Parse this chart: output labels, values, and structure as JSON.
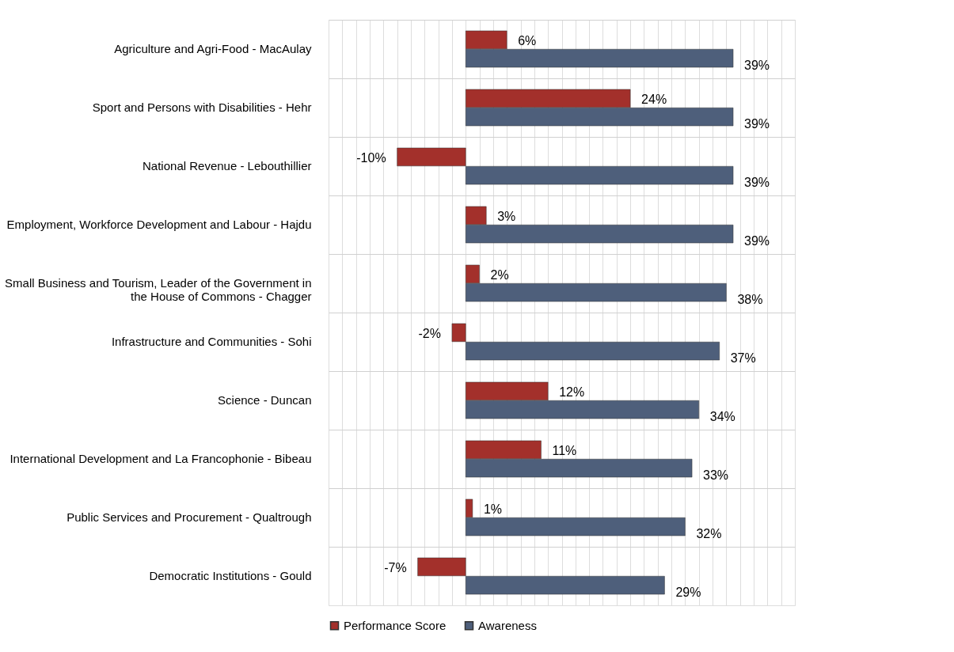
{
  "chart_data": {
    "type": "bar",
    "orientation": "horizontal",
    "categories": [
      "Agriculture and Agri-Food - MacAulay",
      "Sport and Persons with Disabilities - Hehr",
      "National Revenue - Lebouthillier",
      "Employment, Workforce Development and Labour - Hajdu",
      "Small Business and Tourism, Leader of the Government in the House of Commons - Chagger",
      "Infrastructure and Communities - Sohi",
      "Science - Duncan",
      "International Development and La Francophonie - Bibeau",
      "Public Services and Procurement - Qualtrough",
      "Democratic Institutions - Gould"
    ],
    "series": [
      {
        "name": "Performance Score",
        "color": "#a3302b",
        "values": [
          6,
          24,
          -10,
          3,
          2,
          -2,
          12,
          11,
          1,
          -7
        ],
        "value_labels": [
          "6%",
          "24%",
          "-10%",
          "3%",
          "2%",
          "-2%",
          "12%",
          "11%",
          "1%",
          "-7%"
        ]
      },
      {
        "name": "Awareness",
        "color": "#4e5f7b",
        "values": [
          39,
          39,
          39,
          39,
          38,
          37,
          34,
          33,
          32,
          29
        ],
        "value_labels": [
          "39%",
          "39%",
          "39%",
          "39%",
          "38%",
          "37%",
          "34%",
          "33%",
          "32%",
          "29%"
        ]
      }
    ],
    "xlim": [
      -20,
      48
    ],
    "tick_labels": "y",
    "grid": true,
    "legend": "bottom"
  }
}
